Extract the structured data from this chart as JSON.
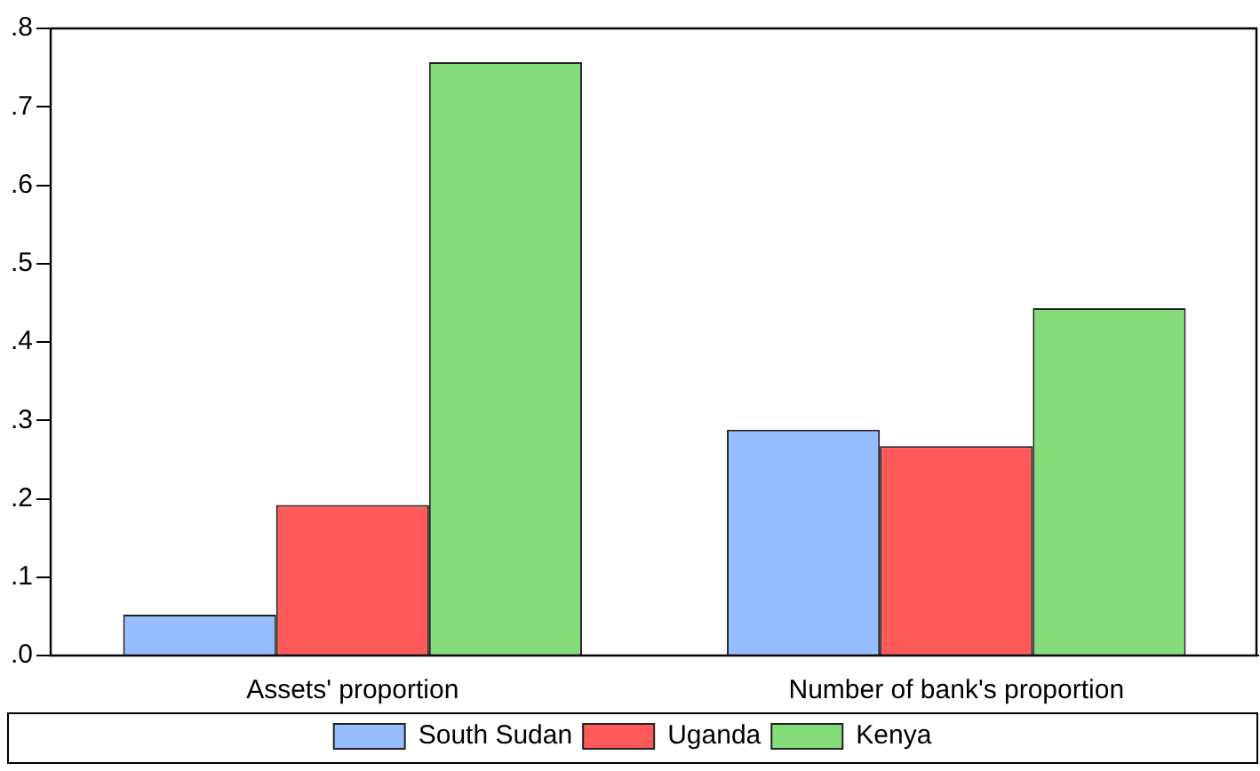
{
  "chart_data": {
    "type": "bar",
    "categories": [
      "Assets' proportion",
      "Number of bank's proportion"
    ],
    "series": [
      {
        "name": "South Sudan",
        "color": "#96bdff",
        "values": [
          0.052,
          0.288
        ]
      },
      {
        "name": "Uganda",
        "color": "#ff5a5a",
        "values": [
          0.192,
          0.267
        ]
      },
      {
        "name": "Kenya",
        "color": "#84dc7a",
        "values": [
          0.757,
          0.443
        ]
      }
    ],
    "ylim": [
      0,
      0.8
    ],
    "yticks": [
      {
        "value": 0,
        "label": ".0"
      },
      {
        "value": 0.1,
        "label": ".1"
      },
      {
        "value": 0.2,
        "label": ".2"
      },
      {
        "value": 0.3,
        "label": ".3"
      },
      {
        "value": 0.4,
        "label": ".4"
      },
      {
        "value": 0.5,
        "label": ".5"
      },
      {
        "value": 0.6,
        "label": ".6"
      },
      {
        "value": 0.7,
        "label": ".7"
      },
      {
        "value": 0.8,
        "label": ".8"
      }
    ],
    "grid": false,
    "legend": "bottom"
  }
}
